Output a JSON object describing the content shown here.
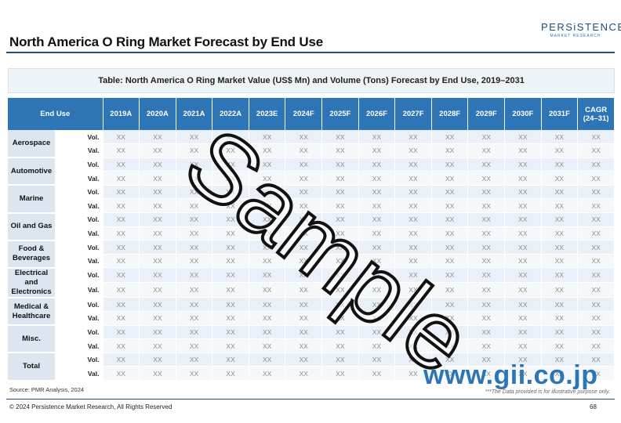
{
  "header": {
    "title": "North America O Ring Market Forecast by End Use",
    "logo_main": "PERSiSTENCE",
    "logo_sub": "MARKET RESEARCH"
  },
  "table": {
    "caption": "Table: North America O Ring Market Value (US$ Mn) and Volume (Tons) Forecast by End Use, 2019–2031",
    "first_column_header": "End Use",
    "year_headers": [
      "2019A",
      "2020A",
      "2021A",
      "2022A",
      "2023E",
      "2024F",
      "2025F",
      "2026F",
      "2027F",
      "2028F",
      "2029F",
      "2030F",
      "2031F"
    ],
    "cagr_header": [
      "CAGR",
      "(24–31)"
    ],
    "metric_labels": [
      "Vol.",
      "Val."
    ],
    "placeholder_value": "XX",
    "segments": [
      {
        "lines": [
          "Aerospace"
        ]
      },
      {
        "lines": [
          "Automotive"
        ]
      },
      {
        "lines": [
          "Marine"
        ]
      },
      {
        "lines": [
          "Oil and Gas"
        ]
      },
      {
        "lines": [
          "Food & Beverages"
        ]
      },
      {
        "lines": [
          "Electrical and",
          "Electronics"
        ]
      },
      {
        "lines": [
          "Medical &",
          "Healthcare"
        ]
      },
      {
        "lines": [
          "Misc."
        ]
      },
      {
        "lines": [
          "Total"
        ]
      }
    ]
  },
  "footer": {
    "source": "Source: PMR Analysis, 2024",
    "disclaimer": "***The Data provided is for illustrative purpose only.",
    "copyright": "© 2024 Persistence Market Research, All Rights Reserved",
    "page_number": "68"
  },
  "watermarks": {
    "sample": "Sample",
    "gii": "www.gii.co.jp"
  },
  "colors": {
    "header_blue": "#2e75b6",
    "title_rule": "#1f4e79",
    "segment_bg": "#dbe6f1"
  }
}
